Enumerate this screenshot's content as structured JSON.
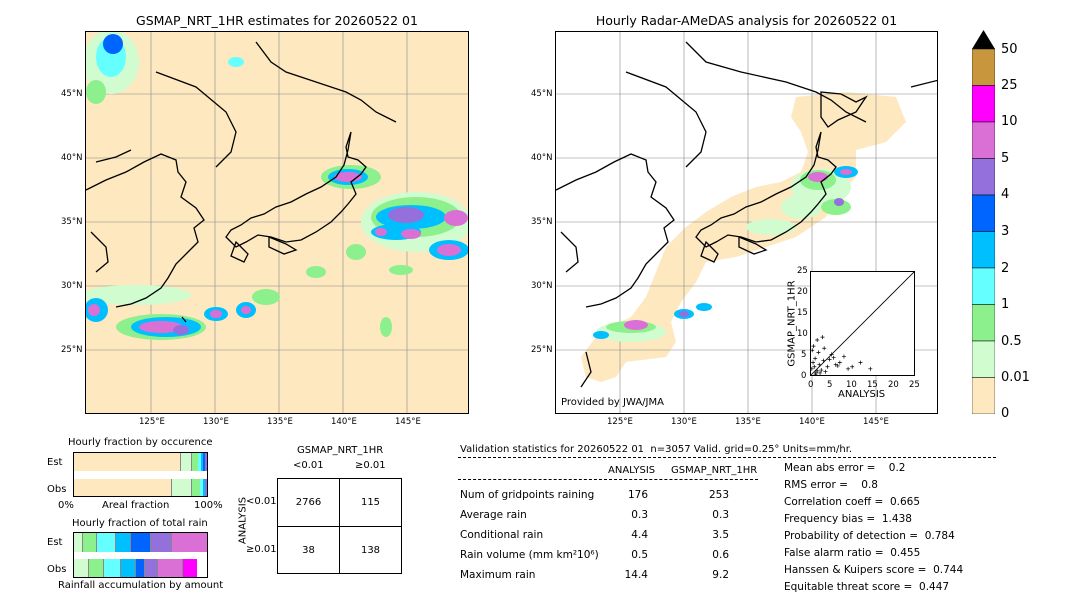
{
  "left_map": {
    "title": "GSMAP_NRT_1HR estimates for 20260522 01",
    "lat_labels": [
      "45°N",
      "40°N",
      "35°N",
      "30°N",
      "25°N"
    ],
    "lon_labels": [
      "125°E",
      "130°E",
      "135°E",
      "140°E",
      "145°E"
    ]
  },
  "right_map": {
    "title": "Hourly Radar-AMeDAS analysis for 20260522 01",
    "lat_labels": [
      "45°N",
      "40°N",
      "35°N",
      "30°N",
      "25°N"
    ],
    "lon_labels": [
      "125°E",
      "130°E",
      "135°E",
      "140°E",
      "145°E"
    ],
    "credit": "Provided by JWA/JMA"
  },
  "colorbar": {
    "labels": [
      "50",
      "25",
      "10",
      "5",
      "4",
      "3",
      "2",
      "1",
      "0.5",
      "0.01",
      "0"
    ],
    "colors": [
      "#c8963c",
      "#ff00ff",
      "#da70d6",
      "#9370db",
      "#0064ff",
      "#00bfff",
      "#66ffff",
      "#8cf08c",
      "#d0fcd0",
      "#fde8c0"
    ]
  },
  "scatter": {
    "ylabel": "GSMAP_NRT_1HR",
    "xlabel": "ANALYSIS",
    "ticks": [
      "0",
      "5",
      "10",
      "15",
      "20",
      "25"
    ]
  },
  "fraction_occurrence": {
    "title": "Hourly fraction by occurence",
    "est_label": "Est",
    "obs_label": "Obs",
    "axis_left": "0%",
    "axis_mid": "Areal fraction",
    "axis_right": "100%"
  },
  "fraction_total": {
    "title": "Hourly fraction of total rain",
    "est_label": "Est",
    "obs_label": "Obs",
    "footer": "Rainfall accumulation by amount"
  },
  "contingency": {
    "title": "GSMAP_NRT_1HR",
    "col_lt": "<0.01",
    "col_ge": "≥0.01",
    "row_axis": "ANALYSIS",
    "row_lt": "<0.01",
    "row_ge": "≥0.01",
    "cells": [
      "2766",
      "115",
      "38",
      "138"
    ]
  },
  "validation": {
    "header": "Validation statistics for 20260522 01  n=3057 Valid. grid=0.25° Units=mm/hr.",
    "col_analysis": "ANALYSIS",
    "col_gsmap": "GSMAP_NRT_1HR",
    "rows": [
      {
        "label": "Num of gridpoints raining",
        "analysis": "176",
        "gsmap": "253"
      },
      {
        "label": "Average rain",
        "analysis": "0.3",
        "gsmap": "0.3"
      },
      {
        "label": "Conditional rain",
        "analysis": "4.4",
        "gsmap": "3.5"
      },
      {
        "label": "Rain volume (mm km²10⁶)",
        "analysis": "0.5",
        "gsmap": "0.6"
      },
      {
        "label": "Maximum rain",
        "analysis": "14.4",
        "gsmap": "9.2"
      }
    ],
    "scores": [
      "Mean abs error =    0.2",
      "RMS error =    0.8",
      "Correlation coeff =  0.665",
      "Frequency bias =  1.438",
      "Probability of detection =  0.784",
      "False alarm ratio =  0.455",
      "Hanssen & Kuipers score =  0.744",
      "Equitable threat score =  0.447"
    ]
  },
  "chart_data": [
    {
      "type": "heatmap",
      "title": "GSMAP_NRT_1HR estimates for 20260522 01",
      "x_ticks": [
        "125°E",
        "130°E",
        "135°E",
        "140°E",
        "145°E"
      ],
      "y_ticks": [
        "45°N",
        "40°N",
        "35°N",
        "30°N",
        "25°N"
      ]
    },
    {
      "type": "heatmap",
      "title": "Hourly Radar-AMeDAS analysis for 20260522 01",
      "x_ticks": [
        "125°E",
        "130°E",
        "135°E",
        "140°E",
        "145°E"
      ],
      "y_ticks": [
        "45°N",
        "40°N",
        "35°N",
        "30°N",
        "25°N"
      ]
    },
    {
      "type": "scatter",
      "xlabel": "ANALYSIS",
      "ylabel": "GSMAP_NRT_1HR",
      "xlim": [
        0,
        25
      ],
      "ylim": [
        0,
        25
      ],
      "x": [
        0.2,
        0.5,
        0.8,
        1.0,
        1.2,
        1.5,
        2.0,
        2.5,
        3.0,
        3.5,
        4.0,
        5.0,
        6.0,
        7.0,
        8.0,
        9.0,
        10.0,
        12.0,
        14.4,
        0.3,
        0.6,
        1.1,
        1.8,
        2.2,
        3.2,
        4.5,
        5.5,
        6.5,
        1.5,
        2.8
      ],
      "y": [
        1.5,
        3.0,
        2.0,
        4.0,
        0.5,
        1.0,
        2.5,
        1.2,
        3.5,
        0.8,
        2.0,
        5.0,
        2.5,
        3.0,
        4.5,
        1.5,
        2.0,
        3.0,
        1.5,
        6.0,
        7.0,
        0.2,
        5.5,
        0.5,
        6.5,
        3.8,
        4.2,
        2.2,
        8.5,
        9.2
      ]
    },
    {
      "type": "table",
      "title": "GSMAP_NRT_1HR",
      "columns": [
        "<0.01",
        "≥0.01"
      ],
      "rows": [
        "<0.01",
        "≥0.01"
      ],
      "values": [
        [
          2766,
          115
        ],
        [
          38,
          138
        ]
      ]
    }
  ]
}
